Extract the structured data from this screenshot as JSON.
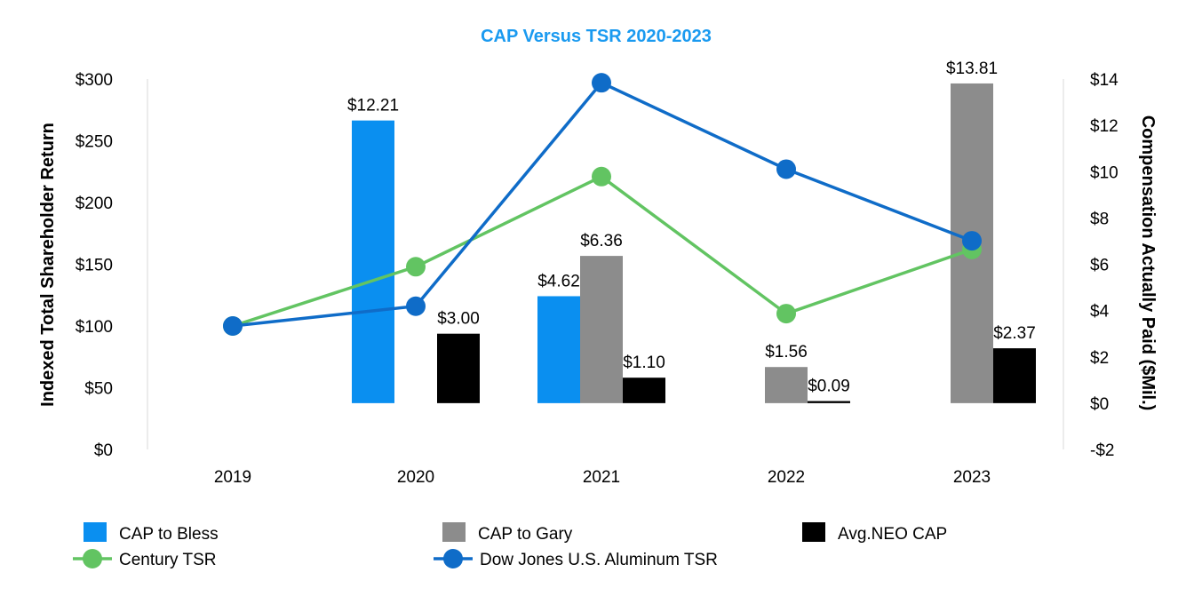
{
  "chart_data": {
    "type": "bar+line",
    "title": "CAP Versus TSR 2020-2023",
    "categories": [
      "2019",
      "2020",
      "2021",
      "2022",
      "2023"
    ],
    "left_axis": {
      "label": "Indexed Total Shareholder Return",
      "range": [
        0,
        300
      ],
      "ticks": [
        0,
        50,
        100,
        150,
        200,
        250,
        300
      ],
      "tick_labels": [
        "$0",
        "$50",
        "$100",
        "$150",
        "$200",
        "$250",
        "$300"
      ]
    },
    "right_axis": {
      "label": "Compensation Actually Paid ($Mil.)",
      "range": [
        -2,
        14
      ],
      "ticks": [
        -2,
        0,
        2,
        4,
        6,
        8,
        10,
        12,
        14
      ],
      "tick_labels": [
        "-$2",
        "$0",
        "$2",
        "$4",
        "$6",
        "$8",
        "$10",
        "$12",
        "$14"
      ]
    },
    "bar_series": [
      {
        "name": "CAP to Bless",
        "color": "#0a8ff0",
        "values": [
          null,
          12.21,
          4.62,
          null,
          null
        ],
        "labels": [
          null,
          "$12.21",
          "$4.62",
          null,
          null
        ]
      },
      {
        "name": "CAP to Gary",
        "color": "#8c8c8c",
        "values": [
          null,
          null,
          6.36,
          1.56,
          13.81
        ],
        "labels": [
          null,
          null,
          "$6.36",
          "$1.56",
          "$13.81"
        ]
      },
      {
        "name": "Avg.NEO CAP",
        "color": "#000000",
        "values": [
          null,
          3.0,
          1.1,
          0.09,
          2.37
        ],
        "labels": [
          null,
          "$3.00",
          "$1.10",
          "$0.09",
          "$2.37"
        ]
      }
    ],
    "line_series": [
      {
        "name": "Century TSR",
        "color": "#62c462",
        "values": [
          100,
          148,
          221,
          110,
          162
        ]
      },
      {
        "name": "Dow Jones U.S. Aluminum TSR",
        "color": "#0f6cc8",
        "values": [
          100,
          116,
          297,
          227,
          169
        ]
      }
    ],
    "legend_position": "bottom"
  }
}
